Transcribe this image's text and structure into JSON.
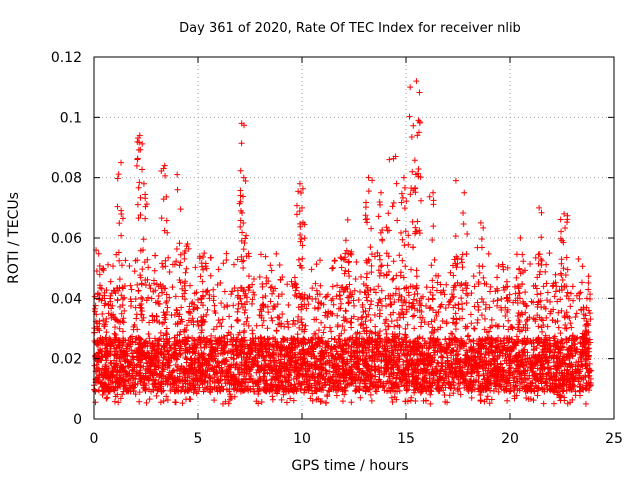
{
  "chart_data": {
    "type": "scatter",
    "title": "Day 361 of 2020, Rate Of TEC Index for receiver nlib",
    "xlabel": "GPS time / hours",
    "ylabel": "ROTI / TECUs",
    "xlim": [
      0,
      25
    ],
    "ylim": [
      0,
      0.12
    ],
    "xticks": [
      0,
      5,
      10,
      15,
      20,
      25
    ],
    "xtick_labels": [
      "0",
      "5",
      "10",
      "15",
      "20",
      "25"
    ],
    "yticks": [
      0,
      0.02,
      0.04,
      0.06,
      0.08,
      0.1,
      0.12
    ],
    "ytick_labels": [
      "0",
      "0.02",
      "0.04",
      "0.06",
      "0.08",
      "0.1",
      "0.12"
    ],
    "grid": true,
    "marker": "+",
    "marker_color": "#ff0000",
    "series": [
      {
        "name": "ROTI",
        "x_start": 0,
        "x_end": 23.9,
        "bulk_range": [
          0.005,
          0.045
        ],
        "peaks": [
          {
            "x": 0.1,
            "y": 0.056
          },
          {
            "x": 1.3,
            "y": 0.085
          },
          {
            "x": 2.2,
            "y": 0.094
          },
          {
            "x": 2.4,
            "y": 0.078
          },
          {
            "x": 3.4,
            "y": 0.084
          },
          {
            "x": 4.0,
            "y": 0.081
          },
          {
            "x": 4.5,
            "y": 0.058
          },
          {
            "x": 5.3,
            "y": 0.055
          },
          {
            "x": 7.1,
            "y": 0.098
          },
          {
            "x": 7.2,
            "y": 0.08
          },
          {
            "x": 9.9,
            "y": 0.078
          },
          {
            "x": 10.0,
            "y": 0.07
          },
          {
            "x": 12.2,
            "y": 0.066
          },
          {
            "x": 13.2,
            "y": 0.08
          },
          {
            "x": 13.8,
            "y": 0.075
          },
          {
            "x": 14.2,
            "y": 0.086
          },
          {
            "x": 14.5,
            "y": 0.087
          },
          {
            "x": 14.9,
            "y": 0.08
          },
          {
            "x": 15.2,
            "y": 0.11
          },
          {
            "x": 15.5,
            "y": 0.112
          },
          {
            "x": 15.6,
            "y": 0.099
          },
          {
            "x": 16.3,
            "y": 0.075
          },
          {
            "x": 17.4,
            "y": 0.079
          },
          {
            "x": 17.8,
            "y": 0.075
          },
          {
            "x": 18.6,
            "y": 0.065
          },
          {
            "x": 20.5,
            "y": 0.06
          },
          {
            "x": 21.4,
            "y": 0.07
          },
          {
            "x": 22.6,
            "y": 0.068
          },
          {
            "x": 23.7,
            "y": 0.04
          }
        ]
      }
    ]
  }
}
